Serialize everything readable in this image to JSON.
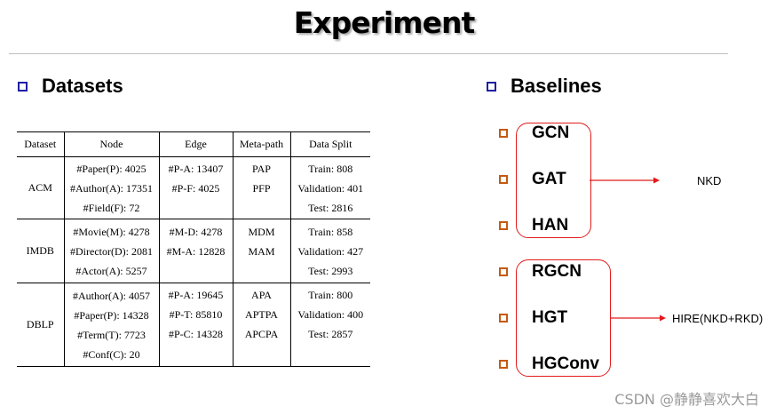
{
  "slide": {
    "title": "Experiment"
  },
  "datasets": {
    "heading": "Datasets",
    "columns": [
      "Dataset",
      "Node",
      "Edge",
      "Meta-path",
      "Data Split"
    ],
    "rows": [
      {
        "dataset": "ACM",
        "nodes": [
          "#Paper(P): 4025",
          "#Author(A): 17351",
          "#Field(F): 72"
        ],
        "edges": [
          "#P-A: 13407",
          "#P-F: 4025"
        ],
        "metapaths": [
          "PAP",
          "PFP"
        ],
        "split": [
          "Train: 808",
          "Validation: 401",
          "Test: 2816"
        ]
      },
      {
        "dataset": "IMDB",
        "nodes": [
          "#Movie(M): 4278",
          "#Director(D): 2081",
          "#Actor(A): 5257"
        ],
        "edges": [
          "#M-D: 4278",
          "#M-A: 12828"
        ],
        "metapaths": [
          "MDM",
          "MAM"
        ],
        "split": [
          "Train: 858",
          "Validation: 427",
          "Test: 2993"
        ]
      },
      {
        "dataset": "DBLP",
        "nodes": [
          "#Author(A): 4057",
          "#Paper(P): 14328",
          "#Term(T): 7723",
          "#Conf(C): 20"
        ],
        "edges": [
          "#P-A: 19645",
          "#P-T: 85810",
          "#P-C: 14328"
        ],
        "metapaths": [
          "APA",
          "APTPA",
          "APCPA"
        ],
        "split": [
          "Train: 800",
          "Validation: 400",
          "Test: 2857"
        ]
      }
    ]
  },
  "baselines": {
    "heading": "Baselines",
    "group1": {
      "items": [
        "GCN",
        "GAT",
        "HAN"
      ],
      "target": "NKD"
    },
    "group2": {
      "items": [
        "RGCN",
        "HGT",
        "HGConv"
      ],
      "target": "HIRE(NKD+RKD)"
    }
  },
  "watermark": "CSDN @静静喜欢大白",
  "colors": {
    "box_border": "#e31a1a",
    "bullet_orange": "#c55a11",
    "bullet_blue": "#1f1fa0"
  }
}
